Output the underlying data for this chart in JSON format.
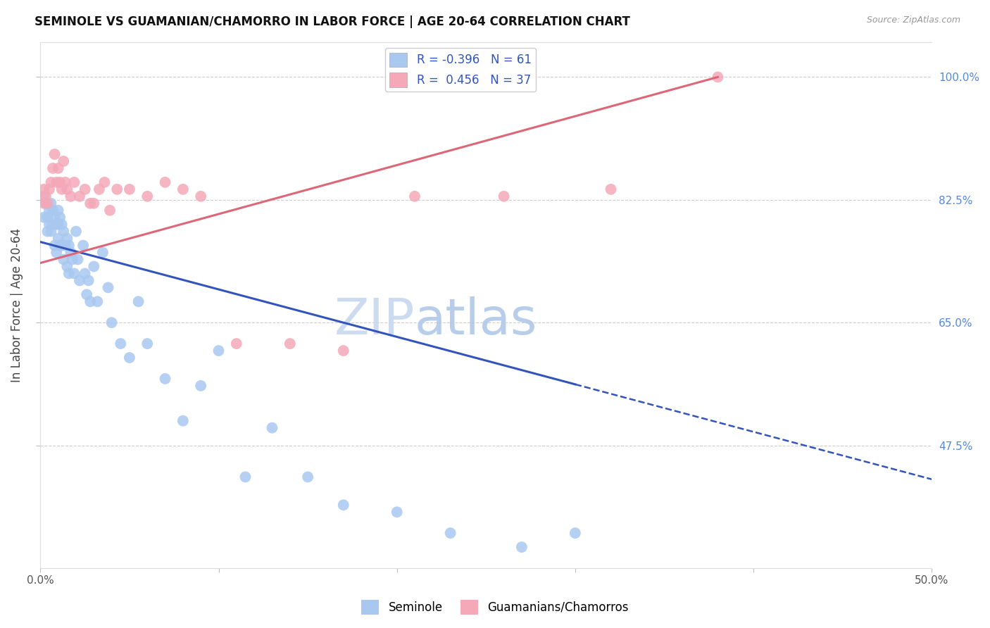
{
  "title": "SEMINOLE VS GUAMANIAN/CHAMORRO IN LABOR FORCE | AGE 20-64 CORRELATION CHART",
  "source": "Source: ZipAtlas.com",
  "ylabel": "In Labor Force | Age 20-64",
  "xlim": [
    0.0,
    0.5
  ],
  "ylim": [
    0.3,
    1.05
  ],
  "right_yticks": [
    1.0,
    0.825,
    0.65,
    0.475
  ],
  "right_yticklabels": [
    "100.0%",
    "82.5%",
    "65.0%",
    "47.5%"
  ],
  "legend_label1": "Seminole",
  "legend_label2": "Guamanians/Chamorros",
  "R1": -0.396,
  "N1": 61,
  "R2": 0.456,
  "N2": 37,
  "color_blue": "#A8C8F0",
  "color_pink": "#F4A8B8",
  "color_blue_line": "#3355BB",
  "color_pink_line": "#DD6677",
  "color_grid": "#CCCCCC",
  "watermark_color": "#C8D8F0",
  "blue_line_x0": 0.0,
  "blue_line_y0": 0.765,
  "blue_line_x1": 0.3,
  "blue_line_y1": 0.562,
  "pink_line_x0": 0.0,
  "pink_line_y0": 0.735,
  "pink_line_x1": 0.38,
  "pink_line_y1": 1.0,
  "blue_x": [
    0.002,
    0.002,
    0.003,
    0.004,
    0.004,
    0.005,
    0.005,
    0.006,
    0.006,
    0.007,
    0.007,
    0.008,
    0.008,
    0.009,
    0.009,
    0.01,
    0.01,
    0.01,
    0.011,
    0.011,
    0.012,
    0.012,
    0.013,
    0.013,
    0.014,
    0.015,
    0.015,
    0.016,
    0.016,
    0.017,
    0.018,
    0.019,
    0.02,
    0.021,
    0.022,
    0.024,
    0.025,
    0.026,
    0.027,
    0.028,
    0.03,
    0.032,
    0.035,
    0.038,
    0.04,
    0.045,
    0.05,
    0.055,
    0.06,
    0.07,
    0.08,
    0.09,
    0.1,
    0.115,
    0.13,
    0.15,
    0.17,
    0.2,
    0.23,
    0.27,
    0.3
  ],
  "blue_y": [
    0.83,
    0.8,
    0.82,
    0.8,
    0.78,
    0.81,
    0.79,
    0.82,
    0.78,
    0.81,
    0.79,
    0.8,
    0.76,
    0.79,
    0.75,
    0.81,
    0.79,
    0.77,
    0.8,
    0.76,
    0.79,
    0.76,
    0.78,
    0.74,
    0.76,
    0.77,
    0.73,
    0.76,
    0.72,
    0.75,
    0.74,
    0.72,
    0.78,
    0.74,
    0.71,
    0.76,
    0.72,
    0.69,
    0.71,
    0.68,
    0.73,
    0.68,
    0.75,
    0.7,
    0.65,
    0.62,
    0.6,
    0.68,
    0.62,
    0.57,
    0.51,
    0.56,
    0.61,
    0.43,
    0.5,
    0.43,
    0.39,
    0.38,
    0.35,
    0.33,
    0.35
  ],
  "pink_x": [
    0.002,
    0.002,
    0.003,
    0.004,
    0.005,
    0.006,
    0.007,
    0.008,
    0.009,
    0.01,
    0.011,
    0.012,
    0.013,
    0.014,
    0.015,
    0.017,
    0.019,
    0.022,
    0.025,
    0.028,
    0.03,
    0.033,
    0.036,
    0.039,
    0.043,
    0.05,
    0.06,
    0.07,
    0.08,
    0.09,
    0.11,
    0.14,
    0.17,
    0.21,
    0.26,
    0.32,
    0.38
  ],
  "pink_y": [
    0.84,
    0.82,
    0.83,
    0.82,
    0.84,
    0.85,
    0.87,
    0.89,
    0.85,
    0.87,
    0.85,
    0.84,
    0.88,
    0.85,
    0.84,
    0.83,
    0.85,
    0.83,
    0.84,
    0.82,
    0.82,
    0.84,
    0.85,
    0.81,
    0.84,
    0.84,
    0.83,
    0.85,
    0.84,
    0.83,
    0.62,
    0.62,
    0.61,
    0.83,
    0.83,
    0.84,
    1.0
  ]
}
